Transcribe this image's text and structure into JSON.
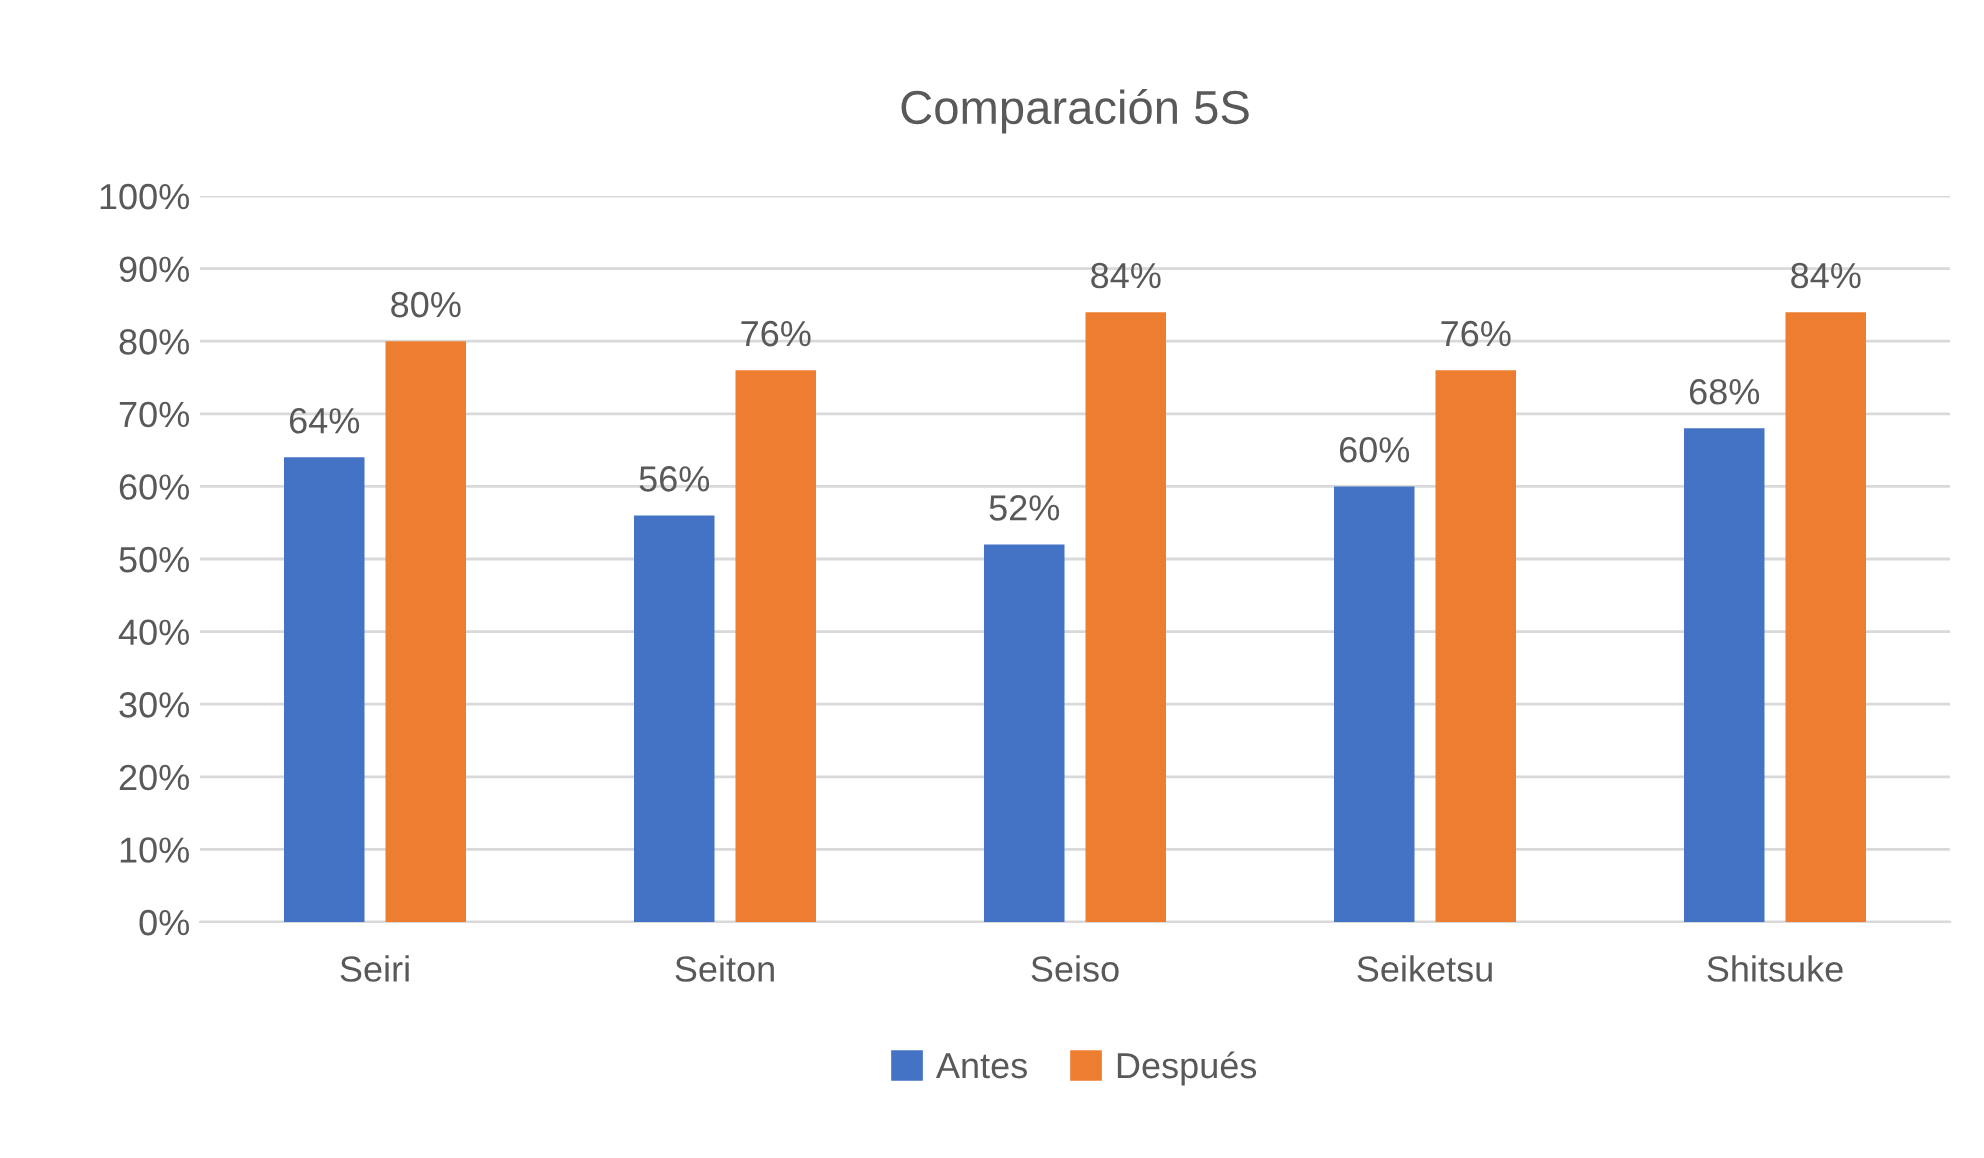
{
  "chart_data": {
    "type": "bar",
    "title": "Comparación 5S",
    "categories": [
      "Seiri",
      "Seiton",
      "Seiso",
      "Seiketsu",
      "Shitsuke"
    ],
    "series": [
      {
        "name": "Antes",
        "color": "#4472c4",
        "values": [
          64,
          56,
          52,
          60,
          68
        ],
        "value_labels": [
          "64%",
          "56%",
          "52%",
          "60%",
          "68%"
        ]
      },
      {
        "name": "Después",
        "color": "#ed7d31",
        "values": [
          80,
          76,
          84,
          76,
          84
        ],
        "value_labels": [
          "80%",
          "76%",
          "84%",
          "76%",
          "84%"
        ]
      }
    ],
    "ylim": [
      0,
      100
    ],
    "yticks": [
      {
        "value": 0,
        "label": "0%"
      },
      {
        "value": 10,
        "label": "10%"
      },
      {
        "value": 20,
        "label": "20%"
      },
      {
        "value": 30,
        "label": "30%"
      },
      {
        "value": 40,
        "label": "40%"
      },
      {
        "value": 50,
        "label": "50%"
      },
      {
        "value": 60,
        "label": "60%"
      },
      {
        "value": 70,
        "label": "70%"
      },
      {
        "value": 80,
        "label": "80%"
      },
      {
        "value": 90,
        "label": "90%"
      },
      {
        "value": 100,
        "label": "100%"
      }
    ],
    "grid": "y",
    "legend": "bottom"
  }
}
